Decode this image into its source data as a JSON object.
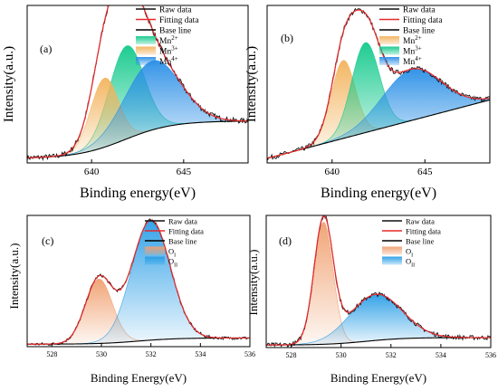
{
  "chart_data": [
    {
      "type": "line",
      "panel_label": "(a)",
      "xlabel": "Binding energy(eV)",
      "ylabel": "Intensity(a.u.)",
      "xlim": [
        636.5,
        648.5
      ],
      "ylim": [
        0,
        1.05
      ],
      "xticks": [
        640,
        645
      ],
      "legend": {
        "position": "top-right",
        "entries": [
          {
            "label": "Raw data",
            "kind": "line",
            "color": "#111111"
          },
          {
            "label": "Fitting data",
            "kind": "line",
            "color": "#e8282a"
          },
          {
            "label": "Base line",
            "kind": "line",
            "color": "#000000"
          },
          {
            "label": "Mn",
            "sup": "2+",
            "kind": "swatch",
            "color": "#12c98c"
          },
          {
            "label": "Mn",
            "sup": "3+",
            "kind": "swatch",
            "color": "#f3b35c"
          },
          {
            "label": "Mn",
            "sup": "4+",
            "kind": "swatch",
            "color": "#2a8fe6"
          }
        ]
      },
      "baseline": {
        "type": "sigmoid",
        "y_low": 0.03,
        "y_high": 0.28,
        "center": 641.8,
        "width": 1.3
      },
      "peaks": [
        {
          "name": "Mn2+",
          "center": 641.9,
          "height": 0.62,
          "sigma": 0.95,
          "color": "#12c98c"
        },
        {
          "name": "Mn3+",
          "center": 640.7,
          "height": 0.46,
          "sigma": 0.75,
          "color": "#f3b35c"
        },
        {
          "name": "Mn4+",
          "center": 643.3,
          "height": 0.46,
          "sigma": 1.5,
          "color": "#2a8fe6"
        }
      ],
      "noise": 0.018
    },
    {
      "type": "line",
      "panel_label": "(b)",
      "xlabel": "Binding energy(eV)",
      "ylabel": "Intensity(a.u.)",
      "xlim": [
        636.5,
        648.5
      ],
      "ylim": [
        0,
        1.05
      ],
      "xticks": [
        640,
        645
      ],
      "legend": {
        "position": "top-right",
        "entries": [
          {
            "label": "Raw data",
            "kind": "line",
            "color": "#111111"
          },
          {
            "label": "Fitting data",
            "kind": "line",
            "color": "#e8282a"
          },
          {
            "label": "Base line",
            "kind": "line",
            "color": "#000000"
          },
          {
            "label": "Mn",
            "sup": "2+",
            "kind": "swatch",
            "color": "#f3b35c"
          },
          {
            "label": "Mn",
            "sup": "3+",
            "kind": "swatch",
            "color": "#12c98c"
          },
          {
            "label": "Mn",
            "sup": "4+",
            "kind": "swatch",
            "color": "#2a8fe6"
          }
        ]
      },
      "baseline": {
        "type": "linear",
        "y_start": 0.03,
        "y_end": 0.42
      },
      "peaks": [
        {
          "name": "Mn2+",
          "center": 640.6,
          "height": 0.52,
          "sigma": 0.65,
          "color": "#f3b35c"
        },
        {
          "name": "Mn3+",
          "center": 641.8,
          "height": 0.6,
          "sigma": 0.75,
          "color": "#12c98c"
        },
        {
          "name": "Mn4+",
          "center": 644.3,
          "height": 0.34,
          "sigma": 1.6,
          "color": "#2a8fe6"
        }
      ],
      "noise": 0.016
    },
    {
      "type": "line",
      "panel_label": "(c)",
      "xlabel": "Binding Energy(eV)",
      "ylabel": "Intensity(a.u.)",
      "xlim": [
        527,
        536
      ],
      "ylim": [
        0,
        1.06
      ],
      "xticks": [
        528,
        530,
        532,
        534,
        536
      ],
      "legend": {
        "position": "top-left",
        "entries": [
          {
            "label": "Raw data",
            "kind": "line",
            "color": "#111111"
          },
          {
            "label": "Fitting data",
            "kind": "line",
            "color": "#e8282a"
          },
          {
            "label": "Base line",
            "kind": "line",
            "color": "#000000"
          },
          {
            "label": "O",
            "sub": "I",
            "kind": "swatch",
            "color": "#f0a070"
          },
          {
            "label": "O",
            "sub": "II",
            "kind": "swatch",
            "color": "#2a9ee6"
          }
        ]
      },
      "baseline": {
        "type": "sigmoid",
        "y_low": 0.02,
        "y_high": 0.07,
        "center": 531.5,
        "width": 0.8
      },
      "peaks": [
        {
          "name": "OI",
          "center": 529.9,
          "height": 0.52,
          "sigma": 0.55,
          "color": "#f0a070"
        },
        {
          "name": "OII",
          "center": 532.0,
          "height": 0.97,
          "sigma": 0.78,
          "color": "#2a9ee6"
        }
      ],
      "noise": 0.012
    },
    {
      "type": "line",
      "panel_label": "(d)",
      "xlabel": "Binding Energy(eV)",
      "ylabel": "Intensity(a.u.)",
      "xlim": [
        527,
        536
      ],
      "ylim": [
        0,
        1.06
      ],
      "xticks": [
        528,
        530,
        532,
        534,
        536
      ],
      "legend": {
        "position": "top-right",
        "entries": [
          {
            "label": "Raw data",
            "kind": "line",
            "color": "#111111"
          },
          {
            "label": "Fitting data",
            "kind": "line",
            "color": "#e8282a"
          },
          {
            "label": "Base line",
            "kind": "line",
            "color": "#000000"
          },
          {
            "label": "O",
            "sub": "I",
            "kind": "swatch",
            "color": "#f0a070"
          },
          {
            "label": "O",
            "sub": "II",
            "kind": "swatch",
            "color": "#2a9ee6"
          }
        ]
      },
      "baseline": {
        "type": "sigmoid",
        "y_low": 0.02,
        "y_high": 0.08,
        "center": 531.0,
        "width": 0.8
      },
      "peaks": [
        {
          "name": "OI",
          "center": 529.3,
          "height": 0.98,
          "sigma": 0.38,
          "color": "#f0a070"
        },
        {
          "name": "OII",
          "center": 531.4,
          "height": 0.37,
          "sigma": 1.05,
          "color": "#2a9ee6"
        }
      ],
      "noise": 0.018
    }
  ]
}
